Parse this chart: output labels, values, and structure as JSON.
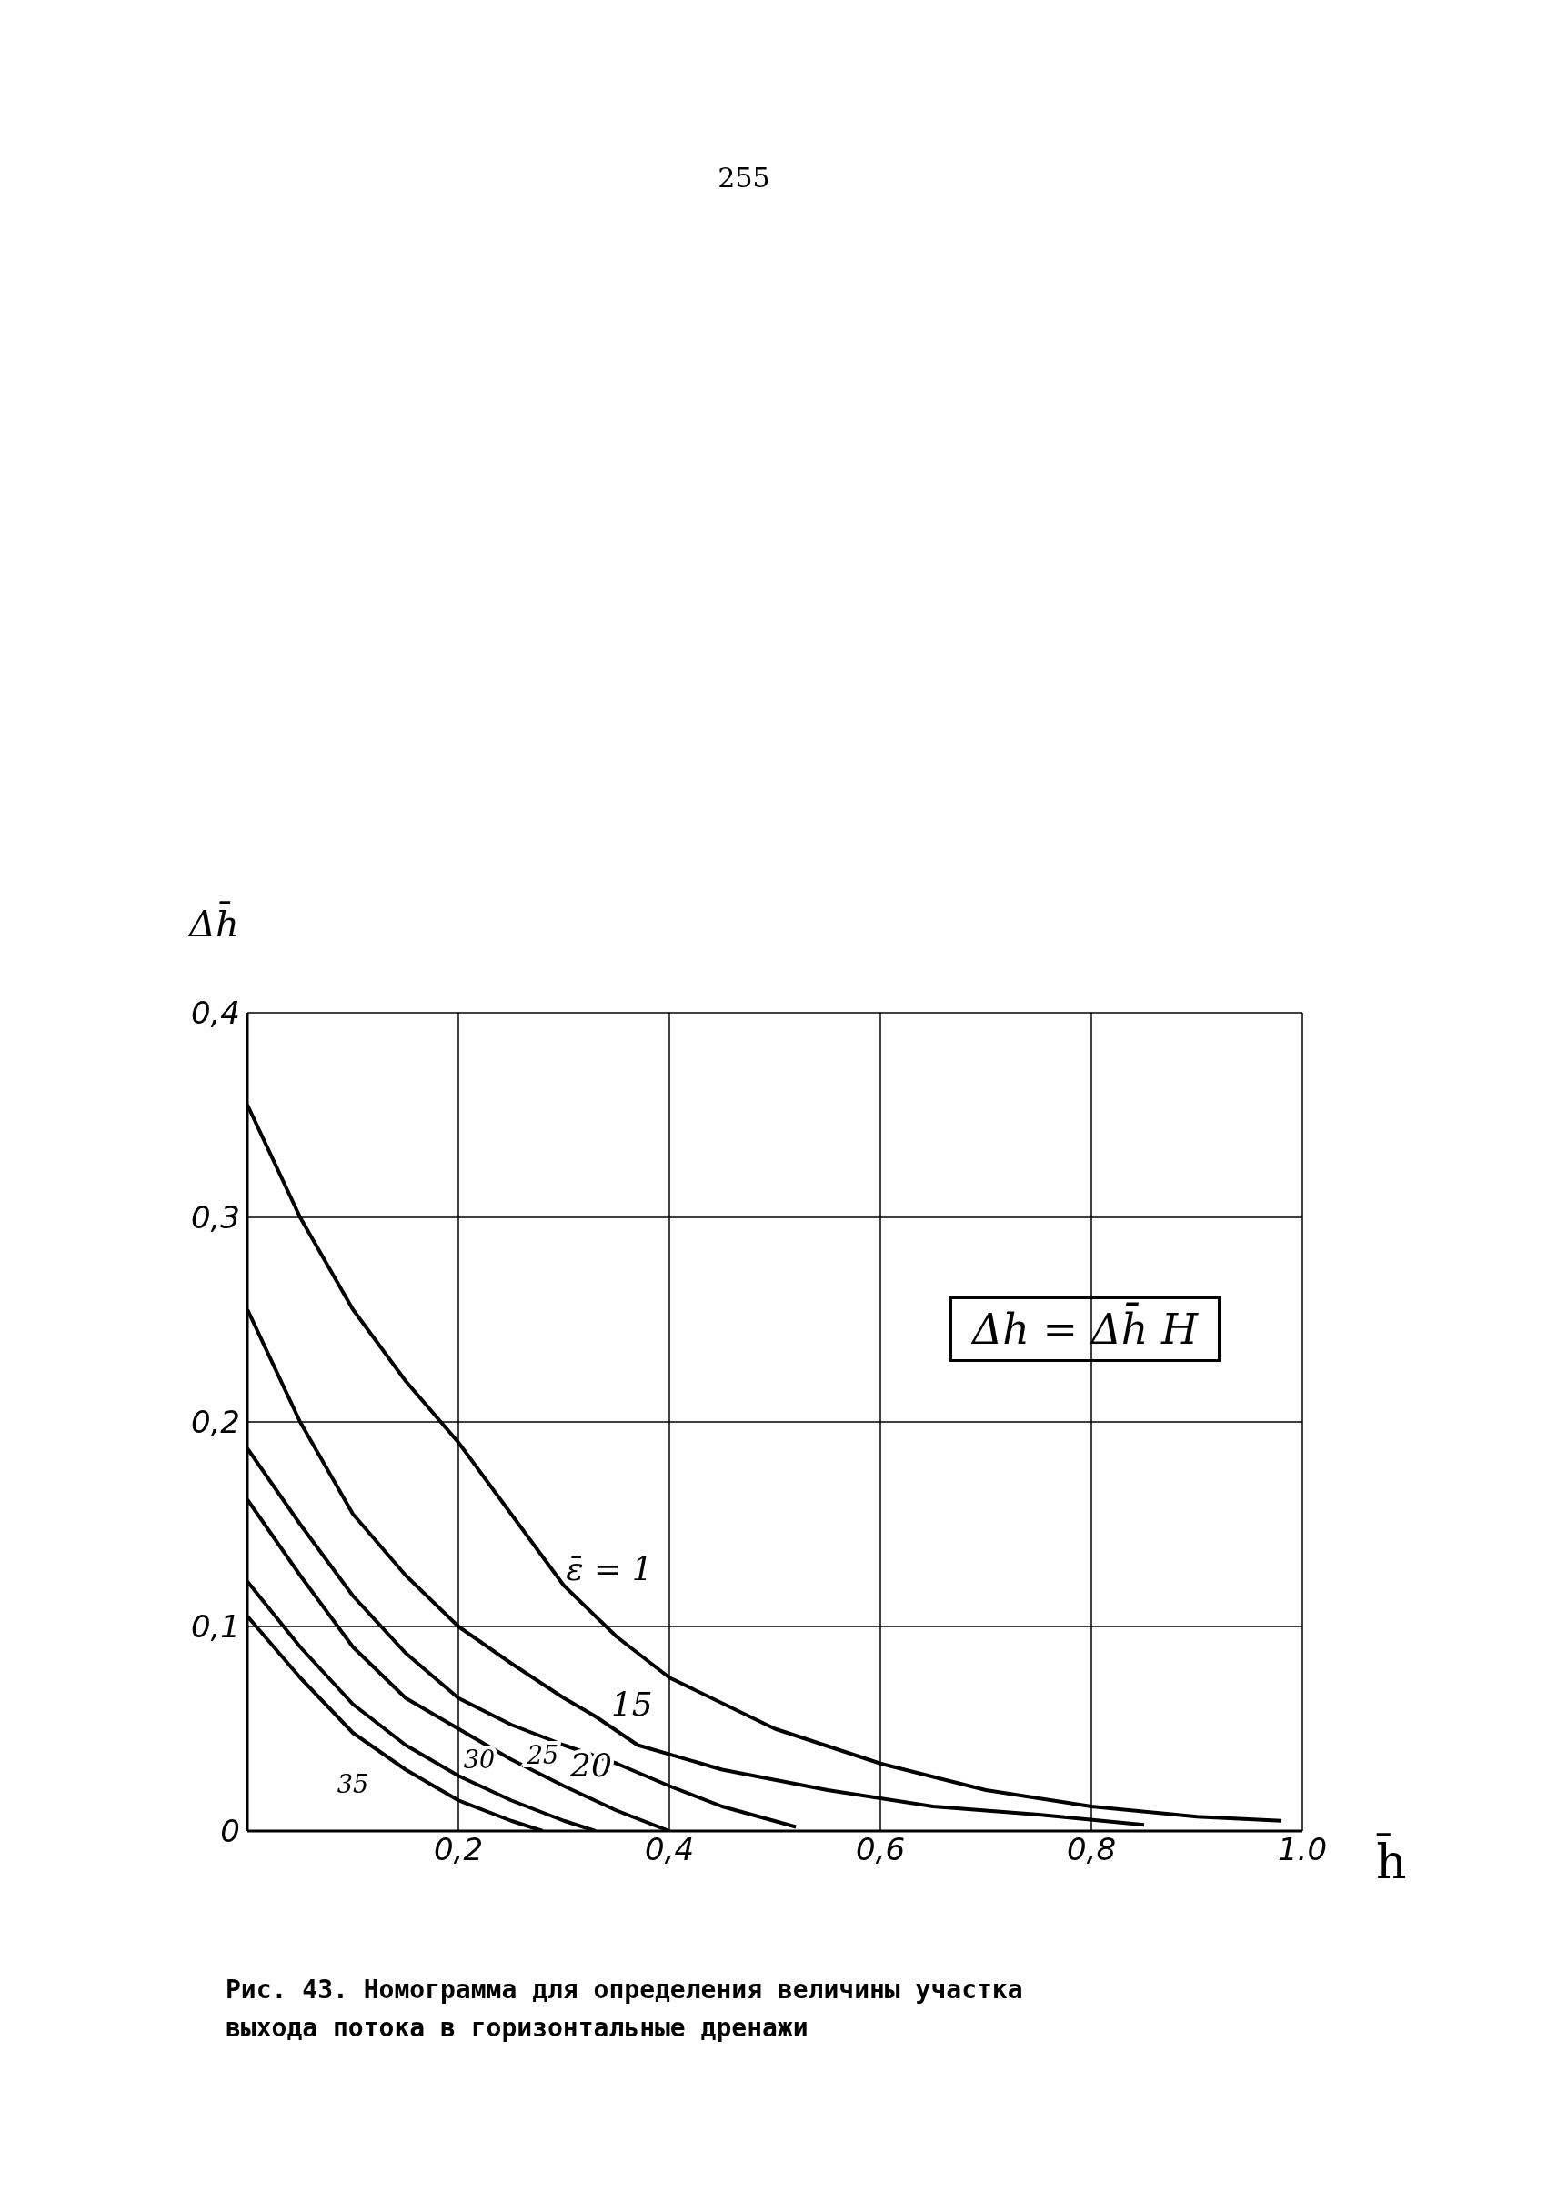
{
  "chart_data": {
    "type": "line",
    "title": "Рис. 43. Номограмма для определения величины участка выхода потока в горизонтальные дренажи",
    "xlabel": "h̄",
    "ylabel": "Δh̄",
    "annotations": [
      "255",
      "Δh = Δh̄ H"
    ],
    "xlim": [
      0,
      1
    ],
    "ylim": [
      0,
      0.4
    ],
    "xticks": [
      {
        "value": 0,
        "label": null
      },
      {
        "value": 0.2,
        "label": "0,2"
      },
      {
        "value": 0.4,
        "label": "0,4"
      },
      {
        "value": 0.6,
        "label": "0,6"
      },
      {
        "value": 0.8,
        "label": "0,8"
      },
      {
        "value": 1.0,
        "label": "1.0"
      }
    ],
    "yticks": [
      0,
      {
        "value": 0.1,
        "label": "0,1"
      },
      {
        "value": 0.2,
        "label": "0,2"
      },
      {
        "value": 0.3,
        "label": "0,3"
      },
      {
        "value": 0.4,
        "label": "0,4"
      }
    ],
    "grid": true,
    "legend": false,
    "marker": "none",
    "line_style": "solid",
    "series": [
      {
        "name": "ε̄ = 1",
        "color": "#000000",
        "x": [
          0,
          0.05,
          0.1,
          0.15,
          0.2,
          0.25,
          0.3,
          0.35,
          0.4,
          0.5,
          0.6,
          0.7,
          0.8,
          0.9,
          0.98
        ],
        "values": [
          0.355,
          0.3,
          0.255,
          0.22,
          0.19,
          0.155,
          0.12,
          0.095,
          0.075,
          0.05,
          0.033,
          0.02,
          0.012,
          0.007,
          0.005
        ]
      },
      {
        "name": "15",
        "color": "#000000",
        "x": [
          0,
          0.05,
          0.1,
          0.15,
          0.2,
          0.25,
          0.3,
          0.33,
          0.37,
          0.45,
          0.55,
          0.65,
          0.75,
          0.85
        ],
        "values": [
          0.255,
          0.2,
          0.155,
          0.125,
          0.1,
          0.082,
          0.065,
          0.056,
          0.042,
          0.03,
          0.02,
          0.012,
          0.008,
          0.003
        ]
      },
      {
        "name": "20",
        "color": "#000000",
        "x": [
          0,
          0.05,
          0.1,
          0.15,
          0.2,
          0.25,
          0.3,
          0.35,
          0.4,
          0.45,
          0.52
        ],
        "values": [
          0.187,
          0.15,
          0.115,
          0.087,
          0.065,
          0.052,
          0.042,
          0.033,
          0.022,
          0.012,
          0.002
        ]
      },
      {
        "name": "25",
        "color": "#000000",
        "x": [
          0,
          0.05,
          0.1,
          0.15,
          0.2,
          0.25,
          0.3,
          0.35,
          0.4
        ],
        "values": [
          0.162,
          0.125,
          0.09,
          0.065,
          0.05,
          0.035,
          0.022,
          0.01,
          0
        ]
      },
      {
        "name": "30",
        "color": "#000000",
        "x": [
          0,
          0.05,
          0.1,
          0.15,
          0.2,
          0.25,
          0.3,
          0.33
        ],
        "values": [
          0.122,
          0.09,
          0.062,
          0.042,
          0.027,
          0.015,
          0.005,
          0
        ]
      },
      {
        "name": "35",
        "color": "#000000",
        "x": [
          0,
          0.05,
          0.1,
          0.15,
          0.2,
          0.25,
          0.28
        ],
        "values": [
          0.105,
          0.075,
          0.048,
          0.03,
          0.015,
          0.005,
          0
        ]
      }
    ]
  }
}
